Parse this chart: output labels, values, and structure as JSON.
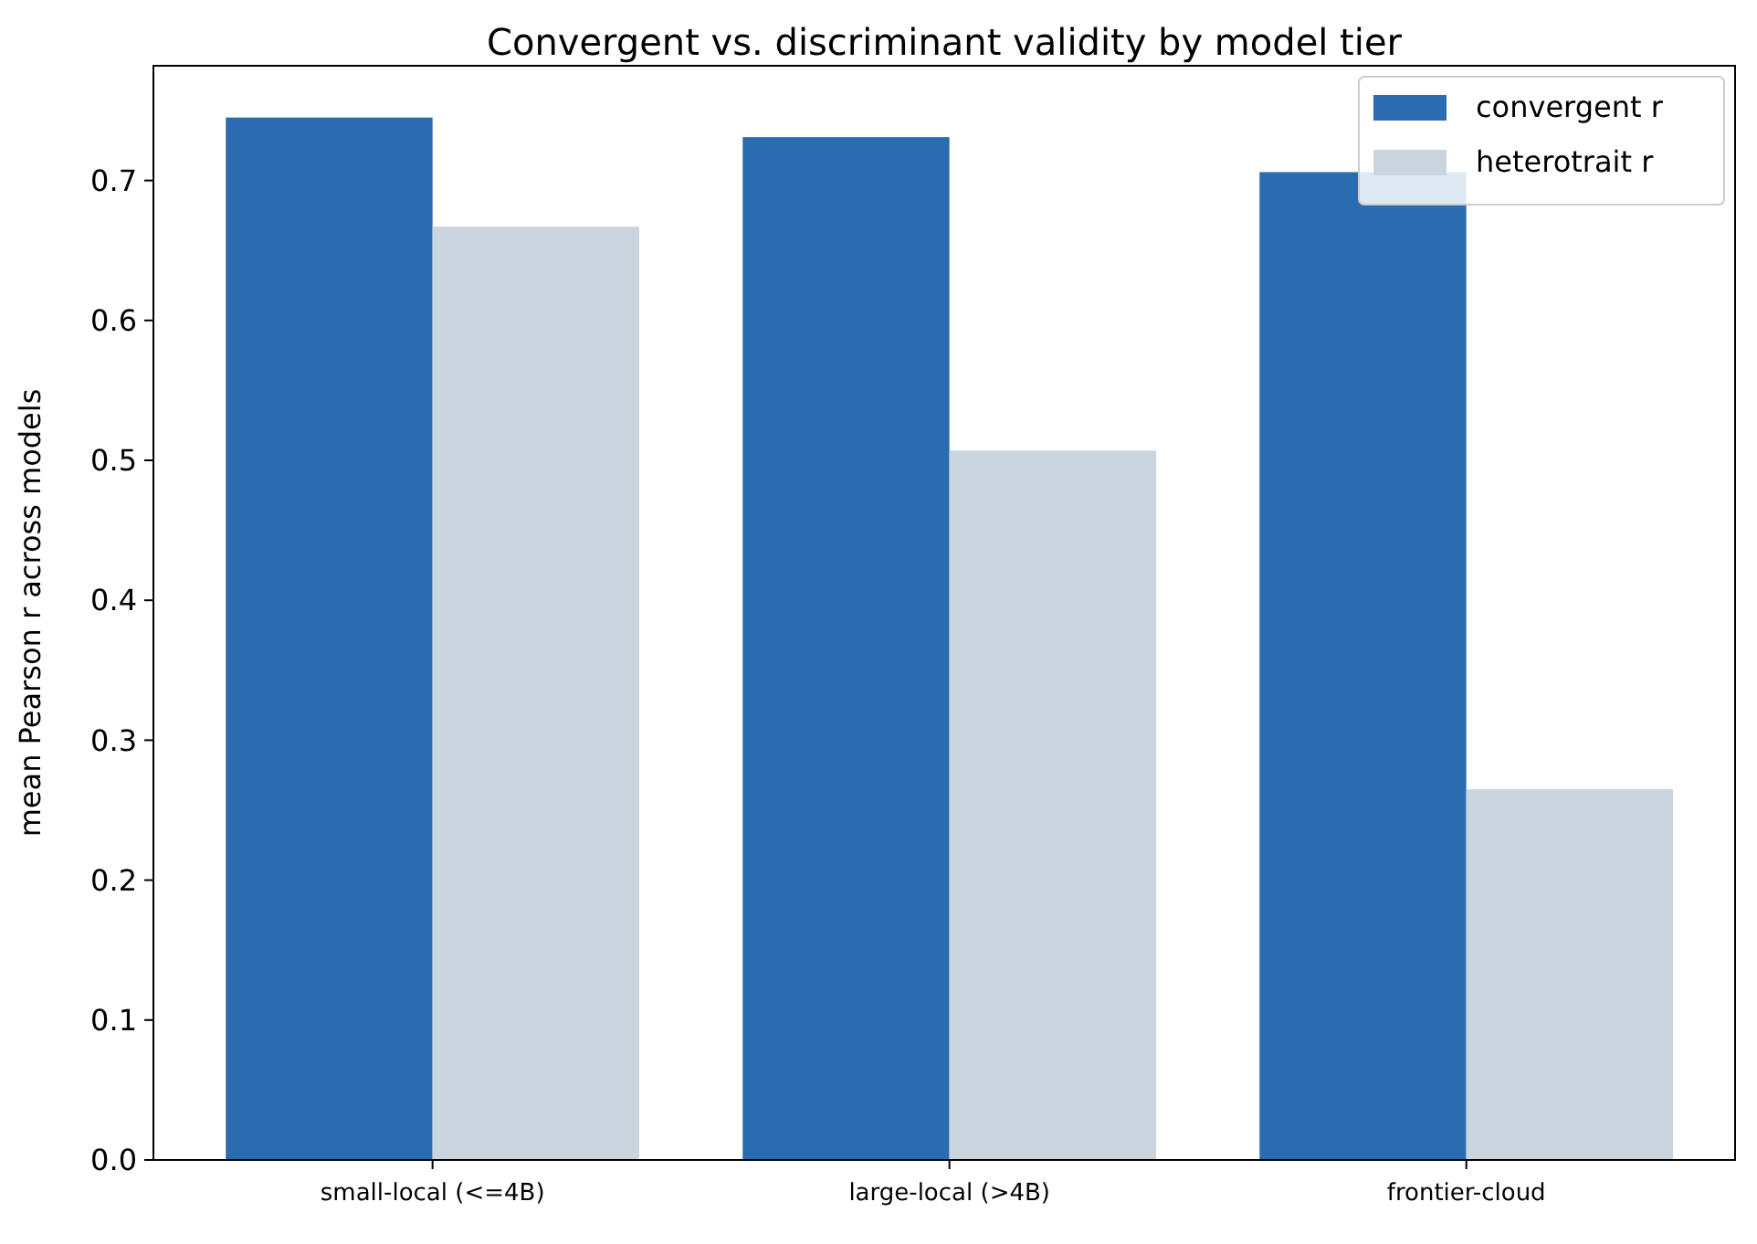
{
  "chart_data": {
    "type": "bar",
    "title": "Convergent vs. discriminant validity by model tier",
    "ylabel": "mean Pearson r across models",
    "categories": [
      "small-local (<=4B)",
      "large-local (>4B)",
      "frontier-cloud"
    ],
    "series": [
      {
        "name": "convergent r",
        "color": "#2b6cb0",
        "values": [
          0.745,
          0.731,
          0.706
        ]
      },
      {
        "name": "heterotrait r",
        "color": "#cbd5e0",
        "values": [
          0.667,
          0.507,
          0.265
        ]
      }
    ],
    "ylim": [
      0,
      0.782
    ],
    "yticks": [
      {
        "value": 0,
        "label": "0.0"
      },
      {
        "value": 0.1,
        "label": "0.1"
      },
      {
        "value": 0.2,
        "label": "0.2"
      },
      {
        "value": 0.3,
        "label": "0.3"
      },
      {
        "value": 0.4,
        "label": "0.4"
      },
      {
        "value": 0.5,
        "label": "0.5"
      },
      {
        "value": 0.6,
        "label": "0.6"
      },
      {
        "value": 0.7,
        "label": "0.7"
      }
    ],
    "grid": false,
    "legend": "top right"
  }
}
